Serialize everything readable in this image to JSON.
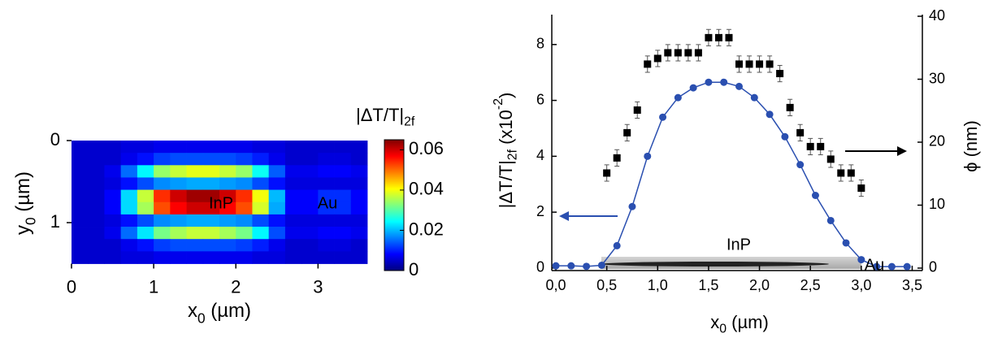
{
  "chart_data": [
    {
      "type": "heatmap",
      "xlabel": [
        {
          "t": "x"
        },
        {
          "sub": "0"
        },
        {
          "t": " (µm)"
        }
      ],
      "ylabel": [
        {
          "t": "y"
        },
        {
          "sub": "0"
        },
        {
          "t": " (µm)"
        }
      ],
      "colorbar_title": [
        {
          "t": "|ΔT/T|"
        },
        {
          "sub": "2f"
        }
      ],
      "xlim": [
        0,
        3.6
      ],
      "ylim": [
        0,
        1.5
      ],
      "xticks": [
        0,
        1,
        2,
        3
      ],
      "yticks": [
        0,
        1
      ],
      "y_inverted": true,
      "zlim": [
        0,
        0.065
      ],
      "zticks": [
        0,
        0.02,
        0.04,
        0.06
      ],
      "colorscale": [
        "#00007f",
        "#0000ff",
        "#007fff",
        "#00ffff",
        "#7fff7f",
        "#ffff00",
        "#ff7f00",
        "#ff0000",
        "#7f0000"
      ],
      "x": [
        0.1,
        0.3,
        0.5,
        0.7,
        0.9,
        1.1,
        1.3,
        1.5,
        1.7,
        1.9,
        2.1,
        2.3,
        2.5,
        2.7,
        2.9,
        3.1,
        3.3,
        3.5
      ],
      "y": [
        0.075,
        0.225,
        0.375,
        0.525,
        0.675,
        0.825,
        0.975,
        1.125,
        1.275,
        1.425
      ],
      "z": [
        [
          0.005,
          0.005,
          0.005,
          0.006,
          0.006,
          0.007,
          0.007,
          0.007,
          0.007,
          0.007,
          0.007,
          0.006,
          0.006,
          0.005,
          0.005,
          0.005,
          0.005,
          0.005
        ],
        [
          0.005,
          0.005,
          0.005,
          0.007,
          0.009,
          0.012,
          0.013,
          0.013,
          0.013,
          0.013,
          0.012,
          0.01,
          0.007,
          0.005,
          0.005,
          0.006,
          0.006,
          0.005
        ],
        [
          0.005,
          0.005,
          0.007,
          0.015,
          0.024,
          0.034,
          0.037,
          0.039,
          0.039,
          0.037,
          0.034,
          0.025,
          0.014,
          0.007,
          0.007,
          0.008,
          0.008,
          0.007
        ],
        [
          0.005,
          0.005,
          0.006,
          0.009,
          0.013,
          0.017,
          0.018,
          0.019,
          0.019,
          0.018,
          0.017,
          0.013,
          0.009,
          0.006,
          0.006,
          0.006,
          0.006,
          0.006
        ],
        [
          0.005,
          0.005,
          0.008,
          0.022,
          0.037,
          0.054,
          0.06,
          0.063,
          0.063,
          0.06,
          0.054,
          0.04,
          0.02,
          0.008,
          0.008,
          0.011,
          0.011,
          0.008
        ],
        [
          0.005,
          0.005,
          0.008,
          0.022,
          0.035,
          0.052,
          0.057,
          0.06,
          0.06,
          0.057,
          0.052,
          0.038,
          0.019,
          0.008,
          0.008,
          0.011,
          0.011,
          0.008
        ],
        [
          0.005,
          0.005,
          0.006,
          0.009,
          0.013,
          0.017,
          0.018,
          0.019,
          0.019,
          0.018,
          0.017,
          0.013,
          0.009,
          0.006,
          0.006,
          0.006,
          0.006,
          0.006
        ],
        [
          0.005,
          0.005,
          0.007,
          0.015,
          0.023,
          0.032,
          0.035,
          0.037,
          0.037,
          0.035,
          0.032,
          0.024,
          0.013,
          0.007,
          0.007,
          0.008,
          0.008,
          0.007
        ],
        [
          0.005,
          0.005,
          0.005,
          0.007,
          0.009,
          0.012,
          0.013,
          0.013,
          0.013,
          0.013,
          0.012,
          0.01,
          0.007,
          0.005,
          0.005,
          0.006,
          0.006,
          0.005
        ],
        [
          0.005,
          0.005,
          0.005,
          0.006,
          0.006,
          0.007,
          0.007,
          0.007,
          0.007,
          0.007,
          0.007,
          0.006,
          0.006,
          0.005,
          0.005,
          0.005,
          0.005,
          0.005
        ]
      ],
      "annotations": [
        {
          "text": "InP",
          "color": "#000000"
        },
        {
          "text": "Au",
          "color": "#e6c800"
        }
      ]
    },
    {
      "type": "scatter",
      "xlabel": [
        {
          "t": "x"
        },
        {
          "sub": "0"
        },
        {
          "t": " (µm)"
        }
      ],
      "ylabel": [
        {
          "t": "|ΔT/T|"
        },
        {
          "sub": "2f"
        },
        {
          "t": " (x10"
        },
        {
          "sup": "-2"
        },
        {
          "t": ")"
        }
      ],
      "y2label": [
        {
          "t": "ϕ (nm)"
        }
      ],
      "xlim": [
        -0.04,
        3.6
      ],
      "ylim": [
        -0.09,
        9.07
      ],
      "y2lim": [
        -0.39,
        40.26
      ],
      "xticks": [
        {
          "value": 0,
          "label": "0,0"
        },
        {
          "value": 0.5,
          "label": "0,5"
        },
        {
          "value": 1,
          "label": "1,0"
        },
        {
          "value": 1.5,
          "label": "1,5"
        },
        {
          "value": 2,
          "label": "2,0"
        },
        {
          "value": 2.5,
          "label": "2,5"
        },
        {
          "value": 3,
          "label": "3,0"
        },
        {
          "value": 3.5,
          "label": "3,5"
        }
      ],
      "yticks": [
        0,
        2,
        4,
        6,
        8
      ],
      "y2ticks": [
        0,
        10,
        20,
        30,
        40
      ],
      "series": [
        {
          "color": "#2a4fb0",
          "marker": "circle",
          "line": true,
          "axis": "y",
          "x": [
            0,
            0.15,
            0.3,
            0.45,
            0.6,
            0.75,
            0.9,
            1.05,
            1.2,
            1.35,
            1.5,
            1.65,
            1.8,
            1.95,
            2.1,
            2.25,
            2.4,
            2.55,
            2.7,
            2.85,
            3.0,
            3.15,
            3.3,
            3.45
          ],
          "values": [
            0.08,
            0.08,
            0.06,
            0.1,
            0.8,
            2.2,
            4.0,
            5.4,
            6.1,
            6.45,
            6.65,
            6.65,
            6.5,
            6.1,
            5.5,
            4.7,
            3.7,
            2.6,
            1.7,
            0.9,
            0.3,
            0.05,
            0.05,
            0.05
          ]
        },
        {
          "color": "#000000",
          "marker": "square",
          "line": false,
          "axis": "y2",
          "x": [
            0.5,
            0.6,
            0.7,
            0.8,
            0.9,
            1.0,
            1.1,
            1.2,
            1.3,
            1.4,
            1.5,
            1.6,
            1.7,
            1.8,
            1.9,
            2.0,
            2.1,
            2.2,
            2.3,
            2.4,
            2.5,
            2.6,
            2.7,
            2.8,
            2.9,
            3.0
          ],
          "values": [
            15.1,
            17.5,
            21.5,
            25.1,
            32.4,
            33.3,
            34.2,
            34.2,
            34.2,
            34.2,
            36.6,
            36.6,
            36.6,
            32.4,
            32.4,
            32.4,
            32.4,
            30.9,
            25.5,
            21.5,
            19.3,
            19.3,
            17.3,
            15.1,
            15.1,
            12.7
          ],
          "errors": [
            1.3,
            1.3,
            1.3,
            1.3,
            1.3,
            1.3,
            1.3,
            1.3,
            1.3,
            1.3,
            1.3,
            1.3,
            1.3,
            1.3,
            1.3,
            1.3,
            1.3,
            1.3,
            1.3,
            1.3,
            1.3,
            1.3,
            1.3,
            1.3,
            1.3,
            1.3
          ]
        }
      ],
      "annotations": [
        {
          "text": "InP",
          "color": "#000000"
        },
        {
          "text": "Au",
          "color": "#e6c800"
        }
      ]
    }
  ]
}
